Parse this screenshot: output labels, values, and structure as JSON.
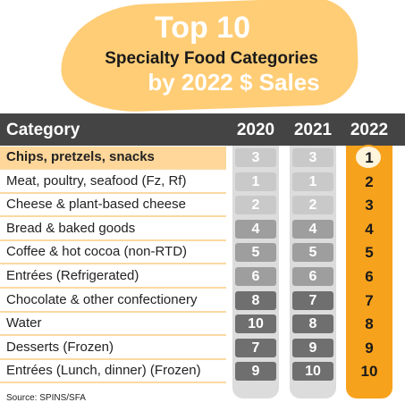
{
  "title": {
    "line1": "Top 10",
    "line2": "Specialty Food Categories",
    "line3": "by 2022 $ Sales"
  },
  "header": {
    "category": "Category",
    "years": [
      "2020",
      "2021",
      "2022"
    ]
  },
  "colors": {
    "blob": "#ffcd76",
    "header_bg": "#444444",
    "highlight_col": "#f7a21c",
    "grey_col": "#dcdcdc",
    "rank_fill_levels": [
      "#c9c9c9",
      "#9e9e9e",
      "#6f6f6f"
    ]
  },
  "chart_data": {
    "type": "table",
    "title": "Top 10 Specialty Food Categories by 2022 $ Sales",
    "columns": [
      "Category",
      "2020",
      "2021",
      "2022"
    ],
    "rows": [
      {
        "category": "Chips, pretzels, snacks",
        "r2020": 3,
        "r2021": 3,
        "r2022": 1
      },
      {
        "category": "Meat, poultry, seafood (Fz, Rf)",
        "r2020": 1,
        "r2021": 1,
        "r2022": 2
      },
      {
        "category": "Cheese & plant-based cheese",
        "r2020": 2,
        "r2021": 2,
        "r2022": 3
      },
      {
        "category": "Bread & baked goods",
        "r2020": 4,
        "r2021": 4,
        "r2022": 4
      },
      {
        "category": "Coffee & hot cocoa (non-RTD)",
        "r2020": 5,
        "r2021": 5,
        "r2022": 5
      },
      {
        "category": "Entrées (Refrigerated)",
        "r2020": 6,
        "r2021": 6,
        "r2022": 6
      },
      {
        "category": "Chocolate & other confectionery",
        "r2020": 8,
        "r2021": 7,
        "r2022": 7
      },
      {
        "category": "Water",
        "r2020": 10,
        "r2021": 8,
        "r2022": 8
      },
      {
        "category": "Desserts (Frozen)",
        "r2020": 7,
        "r2021": 9,
        "r2022": 9
      },
      {
        "category": "Entrées (Lunch, dinner) (Frozen)",
        "r2020": 9,
        "r2021": 10,
        "r2022": 10
      }
    ]
  },
  "source": "Source: SPINS/SFA"
}
